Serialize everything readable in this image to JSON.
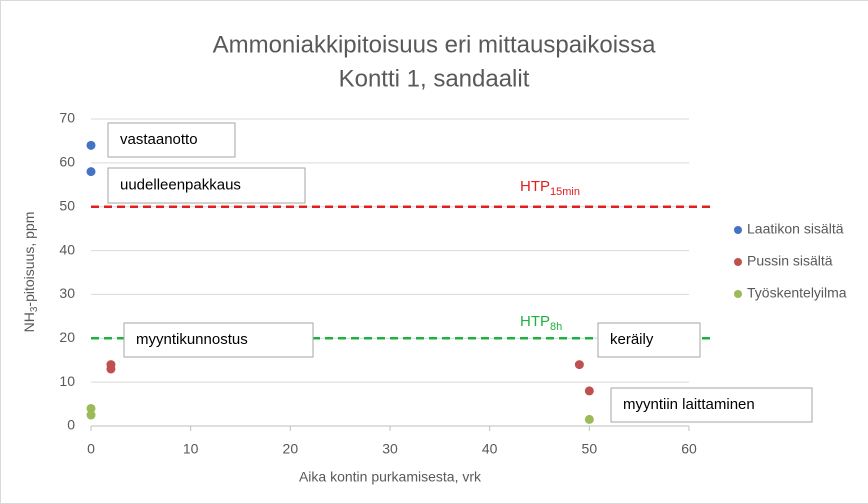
{
  "chart_data": {
    "type": "scatter",
    "title": [
      "Ammoniakkipitoisuus eri mittauspaikoissa",
      "Kontti 1, sandaalit"
    ],
    "xlabel": "Aika kontin purkamisesta, vrk",
    "ylabel": {
      "main": "NH",
      "sub": "3",
      "rest": "-pitoisuus, ppm"
    },
    "xlim": [
      0,
      60
    ],
    "xticks": [
      0,
      10,
      20,
      30,
      40,
      50,
      60
    ],
    "ylim": [
      0,
      70
    ],
    "yticks": [
      0,
      10,
      20,
      30,
      40,
      50,
      60,
      70
    ],
    "grid": true,
    "legend": "right",
    "series": [
      {
        "name": "Laatikon sisältä",
        "color": "#4472c4",
        "x": [
          0,
          0
        ],
        "values": [
          64,
          58
        ]
      },
      {
        "name": "Pussin sisältä",
        "color": "#c0504d",
        "x": [
          2,
          2,
          49,
          50
        ],
        "values": [
          14,
          13,
          14,
          8
        ]
      },
      {
        "name": "Työskentelyilma",
        "color": "#9bbb59",
        "x": [
          0,
          0,
          50
        ],
        "values": [
          4,
          2.5,
          1.5
        ]
      }
    ],
    "reference_lines": [
      {
        "value": 50,
        "label": "HTP",
        "subscript": "15min",
        "color": "#e02020"
      },
      {
        "value": 20,
        "label": "HTP",
        "subscript": "8h",
        "color": "#20b040"
      }
    ],
    "annotations": [
      "vastaanotto",
      "uudelleenpakkaus",
      "myyntikunnostus",
      "keräily",
      "myyntiin laittaminen"
    ]
  }
}
